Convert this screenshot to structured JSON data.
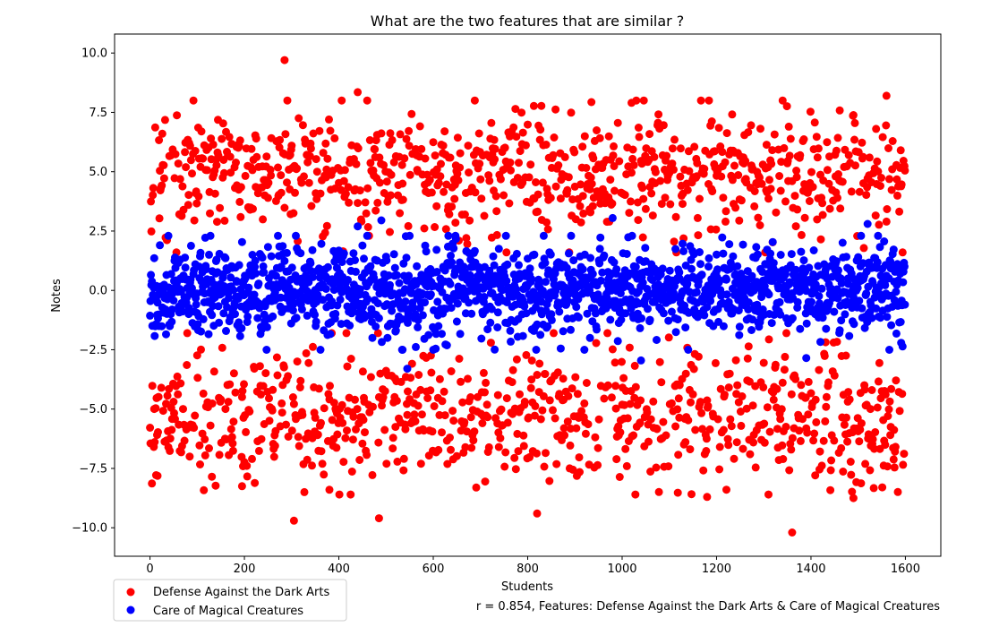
{
  "chart_data": {
    "type": "scatter",
    "title": "What are the two features that are similar ?",
    "xlabel": "Students",
    "ylabel": "Notes",
    "xlim": [
      -75,
      1675
    ],
    "ylim": [
      -11.2,
      10.8
    ],
    "xticks": [
      0,
      200,
      400,
      600,
      800,
      1000,
      1200,
      1400,
      1600
    ],
    "yticks": [
      -10.0,
      -7.5,
      -5.0,
      -2.5,
      0.0,
      2.5,
      5.0,
      7.5,
      10.0
    ],
    "xtick_labels": [
      "0",
      "200",
      "400",
      "600",
      "800",
      "1000",
      "1200",
      "1400",
      "1600"
    ],
    "ytick_labels": [
      "−10.0",
      "−7.5",
      "−5.0",
      "−2.5",
      "0.0",
      "2.5",
      "5.0",
      "7.5",
      "10.0"
    ],
    "grid": false,
    "legend_position": "below-left",
    "footnote": "r = 0.854, Features: Defense Against the Dark Arts & Care of Magical Creatures",
    "n_students": 1600,
    "series": [
      {
        "name": "Defense Against the Dark Arts",
        "color": "#ff0000",
        "description": "bimodal: approx. half the students near +5 (range ~2 to ~9.7), half near -5 (range ~-2 to ~-10.2)",
        "clusters": [
          {
            "mean": 5.0,
            "spread": 1.3
          },
          {
            "mean": -5.3,
            "spread": 1.4
          }
        ],
        "outliers": [
          {
            "x": 285,
            "y": 9.7
          },
          {
            "x": 440,
            "y": 8.35
          },
          {
            "x": 1560,
            "y": 8.2
          },
          {
            "x": 1340,
            "y": 8.0
          },
          {
            "x": 1020,
            "y": 7.9
          },
          {
            "x": 305,
            "y": -9.7
          },
          {
            "x": 485,
            "y": -9.6
          },
          {
            "x": 820,
            "y": -9.4
          },
          {
            "x": 1360,
            "y": -10.2
          },
          {
            "x": 1490,
            "y": -8.75
          },
          {
            "x": 1180,
            "y": -8.7
          },
          {
            "x": 1310,
            "y": -8.6
          },
          {
            "x": 195,
            "y": -8.25
          },
          {
            "x": 380,
            "y": -8.4
          }
        ]
      },
      {
        "name": "Care of Magical Creatures",
        "color": "#0000ff",
        "description": "single cluster centred near 0, range ~-3.3 to ~3.0",
        "clusters": [
          {
            "mean": 0.0,
            "spread": 0.95
          }
        ],
        "outliers": [
          {
            "x": 490,
            "y": 2.95
          },
          {
            "x": 980,
            "y": 3.05
          },
          {
            "x": 1520,
            "y": 2.8
          },
          {
            "x": 440,
            "y": 2.7
          },
          {
            "x": 545,
            "y": -3.3
          },
          {
            "x": 1390,
            "y": -2.85
          },
          {
            "x": 1040,
            "y": -2.95
          },
          {
            "x": 870,
            "y": -2.45
          }
        ]
      }
    ]
  }
}
